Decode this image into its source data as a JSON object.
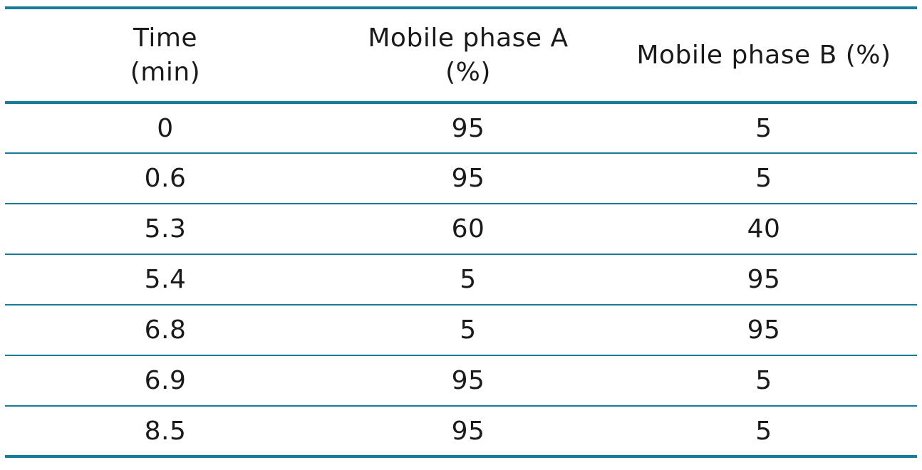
{
  "table": {
    "headers": {
      "time": [
        "Time",
        "(min)"
      ],
      "phase_a": [
        "Mobile phase A",
        "(%)"
      ],
      "phase_b": [
        "Mobile phase B (%)"
      ]
    },
    "rows": [
      {
        "time": "0",
        "a": "95",
        "b": "5"
      },
      {
        "time": "0.6",
        "a": "95",
        "b": "5"
      },
      {
        "time": "5.3",
        "a": "60",
        "b": "40"
      },
      {
        "time": "5.4",
        "a": "5",
        "b": "95"
      },
      {
        "time": "6.8",
        "a": "5",
        "b": "95"
      },
      {
        "time": "6.9",
        "a": "95",
        "b": "5"
      },
      {
        "time": "8.5",
        "a": "95",
        "b": "5"
      }
    ],
    "rule_color": "#1a7a9a"
  }
}
